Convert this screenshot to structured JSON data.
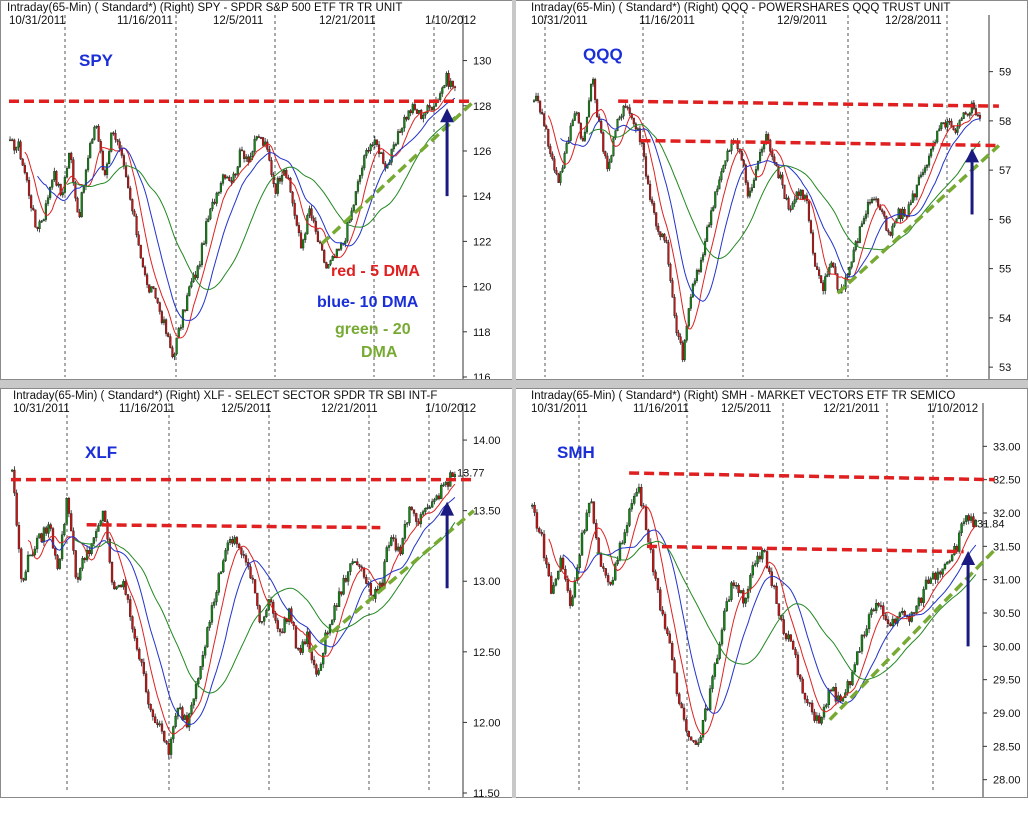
{
  "colors": {
    "up": "#118811",
    "down": "#cc1111",
    "ma5": "#dd2222",
    "ma10": "#2233cc",
    "ma20": "#228822",
    "resistance": "#e02020",
    "support": "#77aa33",
    "arrow": "#1a1a80",
    "ticker": "#1a2fd8",
    "grid": "#555555"
  },
  "chart_data": [
    {
      "type": "candlestick",
      "symbol": "SPY",
      "header": "Intraday(65-Min) ( Standard*)   (Right)  SPY - SPDR S&P 500 ETF TR TR UNIT",
      "ticker_label": "SPY",
      "dates": [
        "10/31/2011",
        "11/16/2011",
        "12/5/2011",
        "12/21/2011",
        "1/10/2012"
      ],
      "y_ticks": [
        "130",
        "128",
        "126",
        "124",
        "122",
        "120",
        "118",
        "116"
      ],
      "last_price": "128.88",
      "ylim": [
        116,
        130.6
      ],
      "anchors": [
        126.3,
        126.2,
        124.6,
        122.6,
        123.2,
        125.1,
        124.0,
        126.0,
        123.0,
        125.4,
        127.4,
        124.8,
        127.1,
        125.7,
        123.9,
        122.0,
        120.0,
        119.6,
        118.3,
        116.9,
        118.4,
        120.0,
        120.8,
        122.8,
        124.0,
        125.1,
        124.7,
        126.0,
        125.7,
        126.7,
        126.1,
        124.3,
        125.4,
        123.8,
        121.7,
        123.4,
        122.0,
        120.8,
        121.3,
        122.0,
        123.4,
        125.1,
        126.4,
        126.2,
        125.3,
        126.2,
        127.4,
        127.9,
        127.6,
        127.9,
        128.4,
        129.2,
        128.8
      ],
      "overlay_notes": [
        "red - 5 DMA",
        "blue- 10 DMA",
        "green - 20",
        "DMA"
      ],
      "resistance": [
        {
          "p1": [
            0,
            128.2
          ],
          "p2": [
            1.04,
            128.2
          ]
        }
      ],
      "support": [
        {
          "p1": [
            0.7,
            121.9
          ],
          "p2": [
            1.04,
            128.2
          ]
        }
      ],
      "arrow": {
        "x": 0.98,
        "from": 124.0,
        "to": 127.8
      }
    },
    {
      "type": "candlestick",
      "symbol": "QQQ",
      "header": "Intraday(65-Min) ( Standard*)   (Right)  QQQ - POWERSHARES QQQ TRUST UNIT",
      "ticker_label": "QQQ",
      "dates": [
        "10/31/2011",
        "11/16/2011",
        "12/9/2011",
        "12/28/2011"
      ],
      "y_ticks": [
        "59",
        "58",
        "57",
        "56",
        "55",
        "54",
        "53"
      ],
      "last_price": "58.10",
      "ylim": [
        52.8,
        59.5
      ],
      "anchors": [
        58.5,
        58.2,
        57.3,
        56.8,
        57.5,
        58.3,
        57.5,
        58.9,
        57.8,
        57.0,
        57.9,
        58.4,
        58.0,
        57.6,
        56.5,
        55.8,
        55.5,
        54.0,
        53.2,
        54.5,
        55.0,
        55.8,
        56.6,
        57.1,
        57.6,
        57.4,
        56.4,
        57.1,
        57.7,
        57.3,
        56.7,
        56.2,
        56.6,
        56.4,
        55.0,
        54.6,
        55.2,
        54.5,
        54.9,
        55.5,
        56.1,
        56.5,
        56.2,
        55.6,
        56.1,
        56.1,
        56.5,
        57.0,
        57.3,
        57.8,
        58.0,
        57.7,
        58.1,
        58.3,
        58.1
      ],
      "resistance": [
        {
          "p1": [
            0.19,
            58.4
          ],
          "p2": [
            1.04,
            58.3
          ]
        },
        {
          "p1": [
            0.24,
            57.6
          ],
          "p2": [
            1.04,
            57.5
          ]
        }
      ],
      "support": [
        {
          "p1": [
            0.68,
            54.5
          ],
          "p2": [
            1.04,
            57.5
          ]
        }
      ],
      "arrow": {
        "x": 0.98,
        "from": 56.1,
        "to": 57.4
      }
    },
    {
      "type": "candlestick",
      "symbol": "XLF",
      "header": "Intraday(65-Min) ( Standard*)   (Right)  XLF - SELECT SECTOR SPDR TR SBI INT-F",
      "ticker_label": "XLF",
      "dates": [
        "10/31/2011",
        "11/16/2011",
        "12/5/2011",
        "12/21/2011",
        "1/10/2012"
      ],
      "y_ticks": [
        "14.00",
        "13.77",
        "13.50",
        "13.00",
        "12.50",
        "12.00",
        "11.50"
      ],
      "last_price": "13.77",
      "ylim": [
        11.5,
        14.05
      ],
      "anchors": [
        13.8,
        13.0,
        13.2,
        13.3,
        13.4,
        13.1,
        13.6,
        13.0,
        13.2,
        13.3,
        13.5,
        12.9,
        13.0,
        12.7,
        12.4,
        12.1,
        11.95,
        11.8,
        12.1,
        12.0,
        12.3,
        12.6,
        12.9,
        13.2,
        13.3,
        13.2,
        13.0,
        12.7,
        12.9,
        12.6,
        12.8,
        12.5,
        12.6,
        12.3,
        12.6,
        12.8,
        13.0,
        13.15,
        13.1,
        12.9,
        12.95,
        13.35,
        13.2,
        13.5,
        13.4,
        13.5,
        13.6,
        13.7,
        13.75
      ],
      "resistance": [
        {
          "p1": [
            0.0,
            13.72
          ],
          "p2": [
            1.04,
            13.72
          ]
        },
        {
          "p1": [
            0.17,
            13.4
          ],
          "p2": [
            0.83,
            13.38
          ]
        }
      ],
      "support": [
        {
          "p1": [
            0.67,
            12.5
          ],
          "p2": [
            1.04,
            13.5
          ]
        }
      ],
      "arrow": {
        "x": 0.98,
        "from": 12.95,
        "to": 13.55
      }
    },
    {
      "type": "candlestick",
      "symbol": "SMH",
      "header": "Intraday(65-Min) ( Standard*)   (Right)  SMH - MARKET VECTORS ETF TR SEMICO",
      "ticker_label": "SMH",
      "dates": [
        "10/31/2011",
        "11/16/2011",
        "12/5/2011",
        "12/21/2011",
        "1/10/2012"
      ],
      "y_ticks": [
        "33.00",
        "32.50",
        "32.00",
        "31.84",
        "31.50",
        "31.00",
        "30.50",
        "30.00",
        "29.50",
        "29.00",
        "28.50",
        "28.00"
      ],
      "last_price": "31.84",
      "ylim": [
        27.8,
        33.2
      ],
      "anchors": [
        32.1,
        31.6,
        30.8,
        31.3,
        30.6,
        31.5,
        32.3,
        31.2,
        30.9,
        31.4,
        32.0,
        32.4,
        31.7,
        30.8,
        30.2,
        29.3,
        28.8,
        28.5,
        29.0,
        29.7,
        30.6,
        31.0,
        30.7,
        31.2,
        31.4,
        30.9,
        30.3,
        30.0,
        29.3,
        29.0,
        28.9,
        29.4,
        29.1,
        29.5,
        30.0,
        30.5,
        30.6,
        30.3,
        30.5,
        30.4,
        30.6,
        31.0,
        31.1,
        31.3,
        31.5,
        32.0,
        31.8
      ],
      "resistance": [
        {
          "p1": [
            0.22,
            32.6
          ],
          "p2": [
            1.04,
            32.5
          ]
        },
        {
          "p1": [
            0.26,
            31.5
          ],
          "p2": [
            0.97,
            31.42
          ]
        }
      ],
      "support": [
        {
          "p1": [
            0.67,
            28.9
          ],
          "p2": [
            1.04,
            31.45
          ]
        }
      ],
      "arrow": {
        "x": 0.98,
        "from": 30.0,
        "to": 31.4
      }
    }
  ]
}
